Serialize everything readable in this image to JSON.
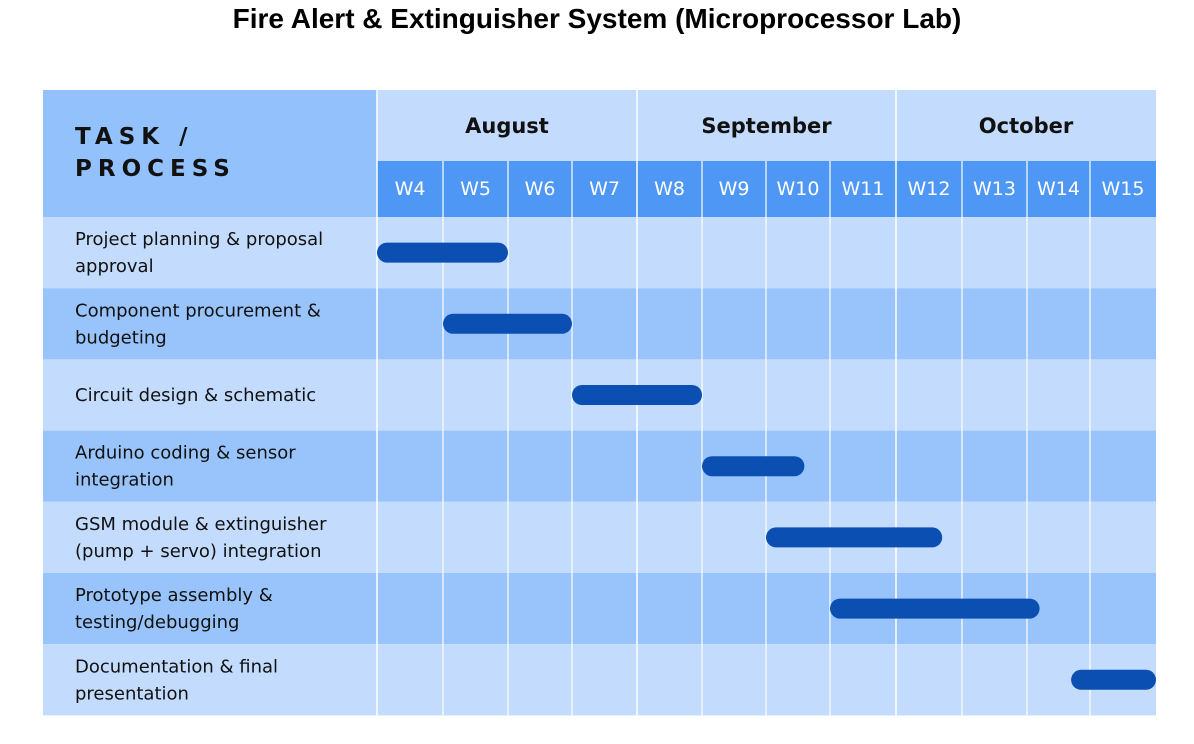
{
  "chart_data": {
    "type": "gantt",
    "title": "Fire Alert & Extinguisher System (Microprocessor Lab)",
    "header_label": [
      "TASK /",
      "PROCESS"
    ],
    "months": [
      {
        "name": "August",
        "weeks": 4
      },
      {
        "name": "September",
        "weeks": 4
      },
      {
        "name": "October",
        "weeks": 4
      }
    ],
    "weeks": [
      "W4",
      "W5",
      "W6",
      "W7",
      "W8",
      "W9",
      "W10",
      "W11",
      "W12",
      "W13",
      "W14",
      "W15"
    ],
    "tasks": [
      {
        "label": [
          "Project planning & proposal",
          "approval"
        ],
        "start": 0,
        "end": 2
      },
      {
        "label": [
          "Component procurement &",
          "budgeting"
        ],
        "start": 1,
        "end": 3
      },
      {
        "label": [
          "Circuit design & schematic"
        ],
        "start": 3,
        "end": 5
      },
      {
        "label": [
          "Arduino coding & sensor",
          "integration"
        ],
        "start": 5,
        "end": 6.6
      },
      {
        "label": [
          "GSM module & extinguisher",
          "(pump + servo) integration"
        ],
        "start": 6,
        "end": 8.7
      },
      {
        "label": [
          "Prototype assembly &",
          "testing/debugging"
        ],
        "start": 7,
        "end": 10.2
      },
      {
        "label": [
          "Documentation & final",
          "presentation"
        ],
        "start": 10.7,
        "end": 12
      }
    ],
    "colors": {
      "header_task_bg": "#93c1fb",
      "month_bg": "#c3dcfd",
      "week_bg": "#4f97f4",
      "row_light": "#c3dcfd",
      "row_dark": "#98c4fb",
      "bar": "#0b4fb3",
      "grid": "#ffffff"
    }
  }
}
